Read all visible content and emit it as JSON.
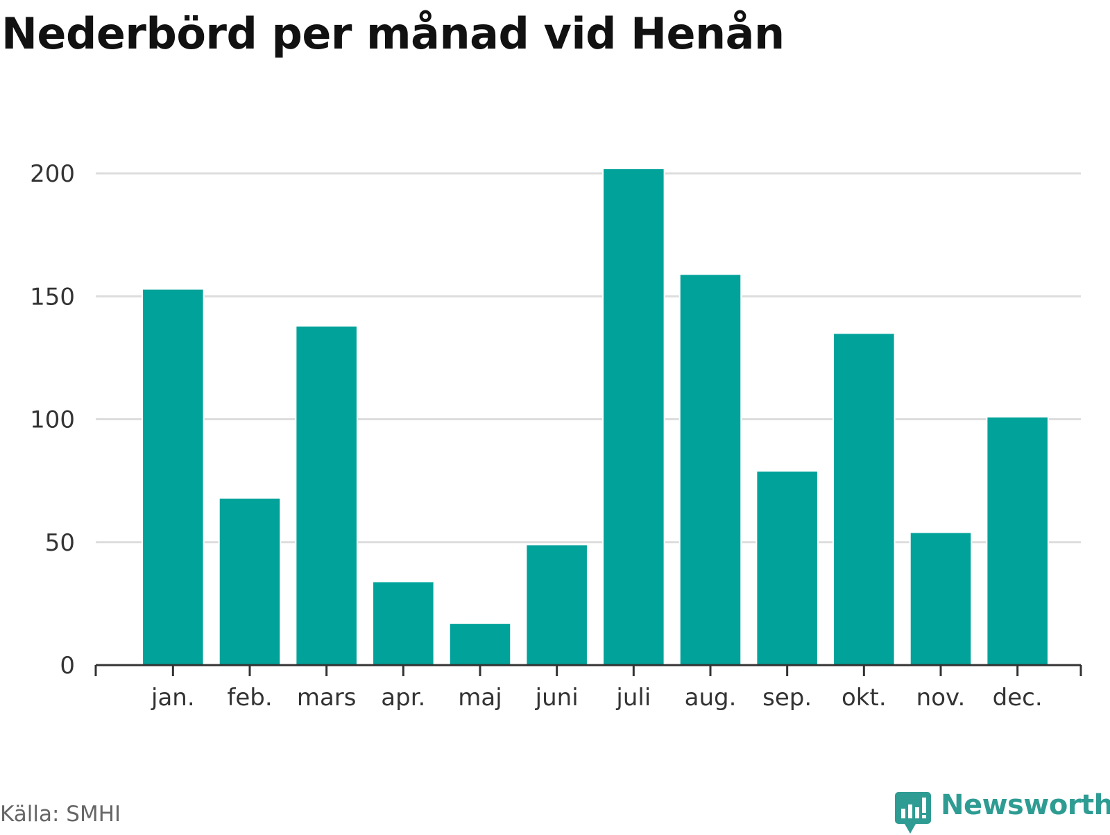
{
  "title": "Nederbörd per månad vid Henån",
  "source": "Källa: SMHI",
  "brand": {
    "name": "Newsworthy",
    "icon": "bar-chart-speech-bubble-icon",
    "color": "#2e9c93"
  },
  "chart_data": {
    "type": "bar",
    "title": "Nederbörd per månad vid Henån",
    "xlabel": "",
    "ylabel": "",
    "categories": [
      "jan.",
      "feb.",
      "mars",
      "apr.",
      "maj",
      "juni",
      "juli",
      "aug.",
      "sep.",
      "okt.",
      "nov.",
      "dec."
    ],
    "values": [
      153,
      68,
      138,
      34,
      17,
      49,
      202,
      159,
      79,
      135,
      54,
      101
    ],
    "ylim": [
      0,
      200
    ],
    "yticks": [
      "0",
      "50",
      "100",
      "150",
      "200"
    ],
    "grid": true,
    "bar_color": "#00a29a"
  }
}
